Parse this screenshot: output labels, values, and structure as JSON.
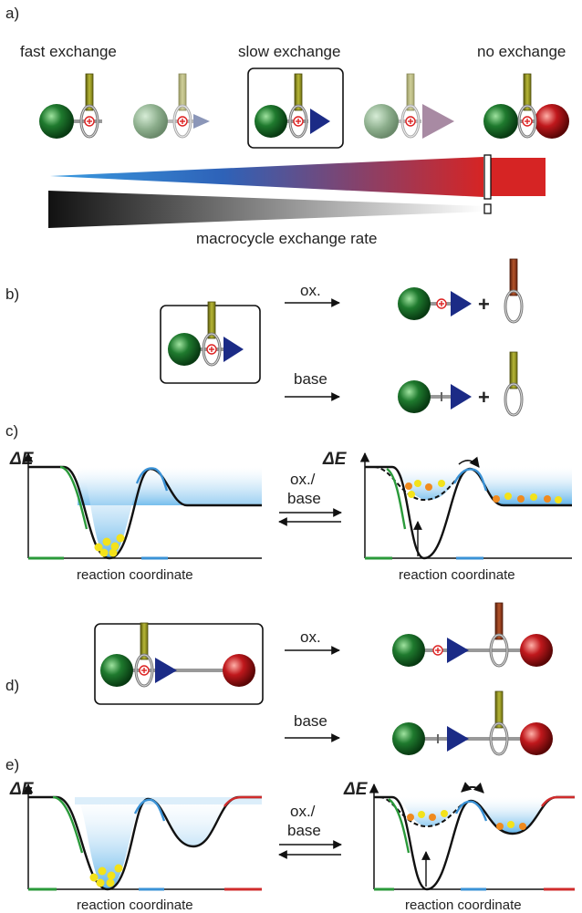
{
  "panels": {
    "a": "a)",
    "b": "b)",
    "c": "c)",
    "d": "d)",
    "e": "e)"
  },
  "panel_a": {
    "fast": "fast exchange",
    "slow": "slow exchange",
    "none": "no exchange",
    "rate": "macrocycle exchange rate"
  },
  "reactions": {
    "ox": "ox.",
    "base": "base",
    "plus": "+",
    "oxbase_1": "ox./",
    "oxbase_2": "base"
  },
  "energy": {
    "delta": "Δ",
    "e": "E",
    "xlabel": "reaction coordinate"
  },
  "colors": {
    "green_stopper": "#1f7a2e",
    "red_stopper": "#c0181c",
    "blue_triangle": "#1b2b86",
    "axle_rod": "#8e8e1c",
    "axle_oxidized": "#8b3a1a",
    "gradient_blue": "#2f8fd0",
    "gradient_red": "#d6282a",
    "well_fill": "#5fb3ea",
    "curve_green": "#2a9a3a",
    "curve_blue": "#3a92d6",
    "curve_red": "#d02c2c",
    "ball_yellow": "#f3e21a",
    "ball_orange": "#f08a1e"
  }
}
